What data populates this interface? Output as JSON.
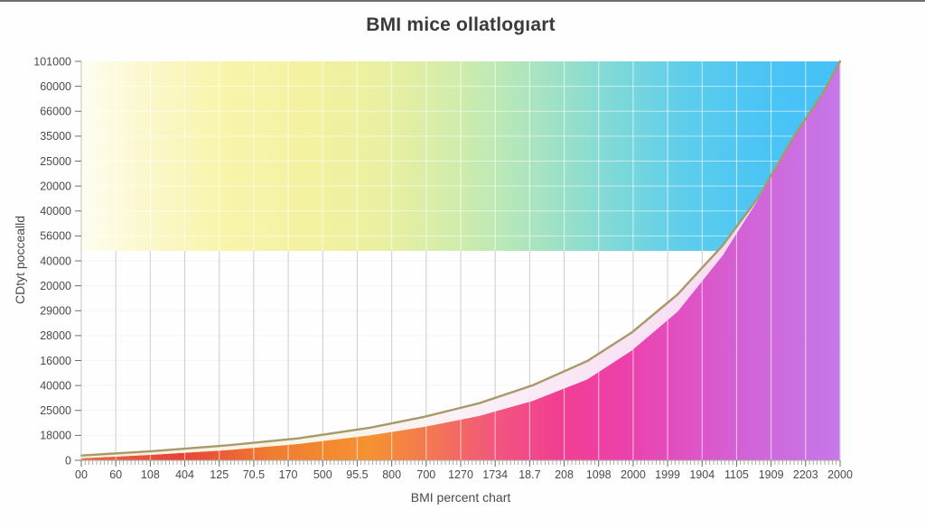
{
  "page": {
    "top_border_color": "#4a4a4a",
    "background": "#fefefe"
  },
  "chart_data": {
    "type": "area",
    "title": "BMI mice ollatlogıart",
    "xlabel": "BMI percent chart",
    "ylabel": "CDtyt poccealld",
    "legend": false,
    "grid": true,
    "x_tick_labels": [
      "00",
      "60",
      "108",
      "404",
      "125",
      "70.5",
      "170",
      "500",
      "95.5",
      "800",
      "700",
      "1270",
      "1734",
      "18.7",
      "208",
      "1098",
      "2000",
      "1999",
      "1904",
      "1105",
      "1909",
      "2203",
      "2000"
    ],
    "y_tick_labels": [
      "101000",
      "60000",
      "66000",
      "35000",
      "25000",
      "20000",
      "40000",
      "56000",
      "40000",
      "20000",
      "29000",
      "28000",
      "16000",
      "40000",
      "25000",
      "18000",
      "0"
    ],
    "band": {
      "name": "top-gradient-band",
      "y_top_frac": 0.0,
      "y_bottom_frac": 0.475,
      "gradient_stops": [
        [
          0,
          "#FEFDF0"
        ],
        [
          0.08,
          "#FBF8CE"
        ],
        [
          0.18,
          "#F8F5AC"
        ],
        [
          0.3,
          "#F3F2A0"
        ],
        [
          0.4,
          "#E9F0A0"
        ],
        [
          0.5,
          "#CFECAC"
        ],
        [
          0.6,
          "#A8E4C0"
        ],
        [
          0.7,
          "#7FD9D8"
        ],
        [
          0.8,
          "#5CCDEC"
        ],
        [
          0.9,
          "#4BC4F4"
        ],
        [
          1,
          "#46C1F7"
        ]
      ]
    },
    "area_series": {
      "name": "filled-area-under-curve",
      "gradient_stops": [
        [
          0,
          "#EE6B3C"
        ],
        [
          0.13,
          "#E84138"
        ],
        [
          0.25,
          "#F07C31"
        ],
        [
          0.38,
          "#F59231"
        ],
        [
          0.47,
          "#F37455"
        ],
        [
          0.55,
          "#F25480"
        ],
        [
          0.63,
          "#F23E92"
        ],
        [
          0.72,
          "#EC41AC"
        ],
        [
          0.8,
          "#DF52C4"
        ],
        [
          0.88,
          "#D164D8"
        ],
        [
          1,
          "#C578E9"
        ]
      ],
      "top_edge_points_frac": [
        [
          0,
          0.995
        ],
        [
          0.095,
          0.986
        ],
        [
          0.19,
          0.975
        ],
        [
          0.286,
          0.959
        ],
        [
          0.381,
          0.937
        ],
        [
          0.452,
          0.916
        ],
        [
          0.524,
          0.889
        ],
        [
          0.595,
          0.851
        ],
        [
          0.667,
          0.797
        ],
        [
          0.726,
          0.724
        ],
        [
          0.786,
          0.627
        ],
        [
          0.845,
          0.487
        ],
        [
          0.893,
          0.344
        ],
        [
          0.94,
          0.188
        ],
        [
          0.976,
          0.086
        ],
        [
          1,
          0.002
        ]
      ]
    },
    "line_series": {
      "name": "curve-line",
      "color": "#A79A6A",
      "points_frac": [
        [
          0,
          0.988
        ],
        [
          0.095,
          0.977
        ],
        [
          0.19,
          0.963
        ],
        [
          0.286,
          0.945
        ],
        [
          0.381,
          0.918
        ],
        [
          0.452,
          0.891
        ],
        [
          0.524,
          0.857
        ],
        [
          0.595,
          0.812
        ],
        [
          0.667,
          0.751
        ],
        [
          0.726,
          0.679
        ],
        [
          0.786,
          0.584
        ],
        [
          0.845,
          0.462
        ],
        [
          0.893,
          0.339
        ],
        [
          0.94,
          0.185
        ],
        [
          0.976,
          0.084
        ],
        [
          1,
          0
        ]
      ]
    },
    "gap_fill": {
      "name": "gap-between-line-and-area",
      "gradient_stops": [
        [
          0,
          "#F6EEDA"
        ],
        [
          0.3,
          "#FAF4E6"
        ],
        [
          0.5,
          "#FBF0F6"
        ],
        [
          0.7,
          "#F8E2F4"
        ],
        [
          1,
          "#F5D7F0"
        ]
      ]
    },
    "style": {
      "grid_color_light_bg": "#CDCDCD",
      "grid_color_on_fill": "rgba(255,255,255,0.62)",
      "axis_spine_color": "#C4C4C4",
      "x_axis_line_color": "#A8A8A8",
      "major_tick_color": "#6E6E6E",
      "minor_tick_color": "#8D7B63",
      "tick_label_color": "#4A4A4A",
      "title_color": "#3A3A3A"
    }
  }
}
